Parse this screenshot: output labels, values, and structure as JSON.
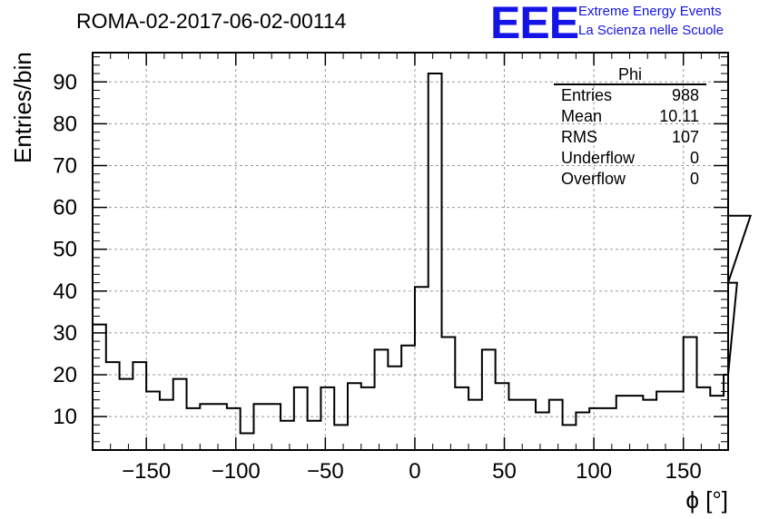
{
  "run_title": "ROMA-02-2017-06-02-00114",
  "logo": {
    "mark": "EEE",
    "line1": "Extreme Energy Events",
    "line2": "La Scienza nelle Scuole",
    "color": "#1414e6"
  },
  "stats_box": {
    "title": "Phi",
    "rows": [
      {
        "label": "Entries",
        "value": "988"
      },
      {
        "label": "Mean",
        "value": "10.11"
      },
      {
        "label": "RMS",
        "value": "107"
      },
      {
        "label": "Underflow",
        "value": "0"
      },
      {
        "label": "Overflow",
        "value": "0"
      }
    ]
  },
  "chart_data": {
    "type": "histogram",
    "title": "ROMA-02-2017-06-02-00114",
    "xlabel": "ϕ [°]",
    "ylabel": "Entries/bin",
    "xlim": [
      -180,
      175
    ],
    "ylim": [
      2,
      97
    ],
    "grid": true,
    "x_ticks": [
      -150,
      -100,
      -50,
      0,
      50,
      100,
      150
    ],
    "y_ticks": [
      10,
      20,
      30,
      40,
      50,
      60,
      70,
      80,
      90
    ],
    "bin_width": 7.5,
    "bin_edges_start": -180,
    "values": [
      32,
      23,
      19,
      23,
      16,
      14,
      19,
      12,
      13,
      13,
      12,
      6,
      13,
      13,
      9,
      17,
      9,
      17,
      8,
      18,
      17,
      26,
      22,
      27,
      41,
      92,
      29,
      17,
      14,
      26,
      18,
      14,
      14,
      11,
      14,
      8,
      11,
      12,
      12,
      15,
      15,
      14,
      16,
      16,
      29,
      17,
      15,
      20,
      42,
      58
    ]
  }
}
